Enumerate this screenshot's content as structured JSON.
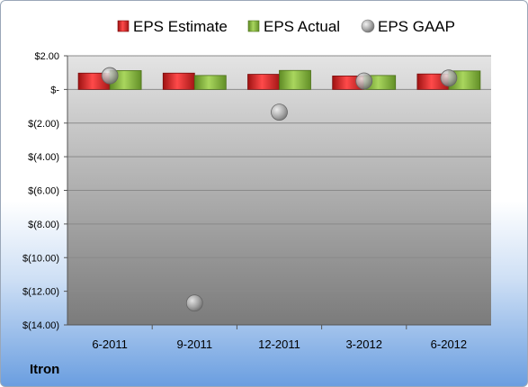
{
  "company": "Itron",
  "chart_data": {
    "type": "bar",
    "categories": [
      "6-2011",
      "9-2011",
      "12-2011",
      "3-2012",
      "6-2012"
    ],
    "series": [
      {
        "name": "EPS Estimate",
        "kind": "bar",
        "color": "#d42a2a",
        "values": [
          0.97,
          0.97,
          0.9,
          0.8,
          0.92
        ]
      },
      {
        "name": "EPS Actual",
        "kind": "bar",
        "color": "#8db844",
        "values": [
          1.12,
          0.83,
          1.13,
          0.83,
          1.1
        ]
      },
      {
        "name": "EPS GAAP",
        "kind": "marker",
        "color": "#a6a6a6",
        "values": [
          0.82,
          -12.7,
          -1.35,
          0.5,
          0.68
        ]
      }
    ],
    "ylim": [
      -14,
      2
    ],
    "yticks": [
      2,
      0,
      -2,
      -4,
      -6,
      -8,
      -10,
      -12,
      -14
    ],
    "ytick_labels": [
      "$2.00",
      "$-",
      "$(2.00)",
      "$(4.00)",
      "$(6.00)",
      "$(8.00)",
      "$(10.00)",
      "$(12.00)",
      "$(14.00)"
    ],
    "legend_position": "top",
    "grid": true
  }
}
